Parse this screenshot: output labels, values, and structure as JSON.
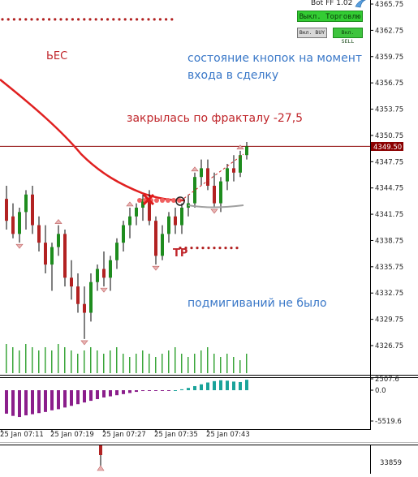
{
  "bot": {
    "label": "Bot FF 1.02"
  },
  "panel": {
    "trade_toggle": "Выкл. Торговлю",
    "buy_button": "Вкл. BUY",
    "sell_button": "Вкл. SELL"
  },
  "annotations": {
    "weight": "ЬЕС",
    "buttons_state_line1": "состояние кнопок на момент",
    "buttons_state_line2": "входа в сделку",
    "closed_by_fractal": "закрылась по фракталу -27,5",
    "tp": "TP",
    "no_blinks": "подмигиваний не было"
  },
  "price_axis": {
    "ticks": [
      "4365.75",
      "4362.75",
      "4359.75",
      "4356.75",
      "4353.75",
      "4350.75",
      "4347.75",
      "4344.75",
      "4341.75",
      "4338.75",
      "4335.75",
      "4332.75",
      "4329.75",
      "4326.75"
    ],
    "current_price": "4349.50",
    "current_line_color": "#8b0000"
  },
  "oscillator_axis": {
    "ticks": [
      "2507.6",
      "0.0",
      "-5519.6"
    ]
  },
  "time_axis": {
    "labels": [
      "25 Jan 07:11",
      "25 Jan 07:19",
      "25 Jan 07:27",
      "25 Jan 07:35",
      "25 Jan 07:43"
    ]
  },
  "lower_panel": {
    "tick": "33859"
  },
  "colors": {
    "bull": "#1e8c1e",
    "bear": "#b22222",
    "ma": "#e02020",
    "annotation_blue": "#3a78c8",
    "annotation_red": "#c0262b",
    "volume": "#3aa53a",
    "osc_negative": "#8b1e8b",
    "osc_positive": "#1aa39a"
  },
  "chart_data": {
    "type": "candlestick",
    "price_range": [
      4325.5,
      4366.5
    ],
    "candles": [
      {
        "o": 4343.5,
        "h": 4345.0,
        "l": 4340.0,
        "c": 4341.0
      },
      {
        "o": 4341.5,
        "h": 4343.0,
        "l": 4339.0,
        "c": 4339.5
      },
      {
        "o": 4339.5,
        "h": 4342.5,
        "l": 4338.5,
        "c": 4342.0
      },
      {
        "o": 4342.0,
        "h": 4344.5,
        "l": 4340.0,
        "c": 4344.0
      },
      {
        "o": 4344.0,
        "h": 4345.0,
        "l": 4339.5,
        "c": 4340.5
      },
      {
        "o": 4340.5,
        "h": 4341.5,
        "l": 4337.5,
        "c": 4338.5
      },
      {
        "o": 4338.5,
        "h": 4340.5,
        "l": 4335.0,
        "c": 4336.0
      },
      {
        "o": 4336.0,
        "h": 4338.5,
        "l": 4333.0,
        "c": 4338.0
      },
      {
        "o": 4338.0,
        "h": 4340.5,
        "l": 4337.0,
        "c": 4339.5
      },
      {
        "o": 4339.5,
        "h": 4340.0,
        "l": 4333.5,
        "c": 4334.5
      },
      {
        "o": 4334.5,
        "h": 4336.5,
        "l": 4332.0,
        "c": 4333.5
      },
      {
        "o": 4333.5,
        "h": 4335.0,
        "l": 4330.5,
        "c": 4331.5
      },
      {
        "o": 4331.5,
        "h": 4333.5,
        "l": 4327.5,
        "c": 4330.5
      },
      {
        "o": 4330.5,
        "h": 4335.0,
        "l": 4329.5,
        "c": 4334.0
      },
      {
        "o": 4334.0,
        "h": 4336.0,
        "l": 4333.0,
        "c": 4335.5
      },
      {
        "o": 4335.5,
        "h": 4337.5,
        "l": 4333.5,
        "c": 4334.5
      },
      {
        "o": 4334.5,
        "h": 4337.0,
        "l": 4333.0,
        "c": 4336.5
      },
      {
        "o": 4336.5,
        "h": 4339.0,
        "l": 4335.5,
        "c": 4338.5
      },
      {
        "o": 4338.5,
        "h": 4341.0,
        "l": 4337.5,
        "c": 4340.5
      },
      {
        "o": 4340.5,
        "h": 4342.5,
        "l": 4339.0,
        "c": 4341.5
      },
      {
        "o": 4341.5,
        "h": 4343.0,
        "l": 4340.5,
        "c": 4342.5
      },
      {
        "o": 4342.5,
        "h": 4344.0,
        "l": 4341.0,
        "c": 4343.5
      },
      {
        "o": 4343.5,
        "h": 4344.5,
        "l": 4340.5,
        "c": 4341.0
      },
      {
        "o": 4341.0,
        "h": 4341.5,
        "l": 4336.0,
        "c": 4337.0
      },
      {
        "o": 4337.0,
        "h": 4340.5,
        "l": 4336.5,
        "c": 4339.5
      },
      {
        "o": 4339.5,
        "h": 4342.0,
        "l": 4338.5,
        "c": 4341.5
      },
      {
        "o": 4341.5,
        "h": 4342.5,
        "l": 4339.5,
        "c": 4340.5
      },
      {
        "o": 4340.5,
        "h": 4343.0,
        "l": 4339.5,
        "c": 4342.5
      },
      {
        "o": 4342.5,
        "h": 4344.0,
        "l": 4341.5,
        "c": 4343.0
      },
      {
        "o": 4343.0,
        "h": 4346.5,
        "l": 4342.5,
        "c": 4346.0
      },
      {
        "o": 4346.0,
        "h": 4348.0,
        "l": 4345.0,
        "c": 4347.0
      },
      {
        "o": 4347.0,
        "h": 4348.0,
        "l": 4344.5,
        "c": 4345.0
      },
      {
        "o": 4345.0,
        "h": 4346.5,
        "l": 4342.5,
        "c": 4343.0
      },
      {
        "o": 4343.0,
        "h": 4346.0,
        "l": 4342.0,
        "c": 4345.5
      },
      {
        "o": 4345.5,
        "h": 4347.5,
        "l": 4344.5,
        "c": 4347.0
      },
      {
        "o": 4347.0,
        "h": 4348.5,
        "l": 4345.5,
        "c": 4346.5
      },
      {
        "o": 4346.5,
        "h": 4349.0,
        "l": 4346.0,
        "c": 4348.5
      },
      {
        "o": 4348.5,
        "h": 4350.0,
        "l": 4348.0,
        "c": 4349.5
      }
    ],
    "oscillator_range": [
      -5519.6,
      2507.6
    ],
    "oscillator": [
      -4200,
      -4600,
      -4800,
      -4500,
      -4300,
      -4100,
      -3900,
      -3600,
      -3400,
      -3100,
      -2800,
      -2500,
      -2200,
      -1900,
      -1600,
      -1300,
      -1100,
      -900,
      -700,
      -500,
      -300,
      -150,
      -50,
      -30,
      -20,
      -10,
      0,
      200,
      500,
      900,
      1300,
      1700,
      2000,
      2200,
      2100,
      1900,
      1800,
      2300
    ],
    "volume": [
      9,
      8,
      7,
      9,
      8,
      7,
      8,
      7,
      9,
      8,
      7,
      6,
      7,
      8,
      7,
      6,
      7,
      8,
      6,
      5,
      6,
      7,
      6,
      5,
      6,
      7,
      8,
      6,
      5,
      6,
      7,
      8,
      6,
      5,
      6,
      5,
      4,
      6
    ]
  }
}
